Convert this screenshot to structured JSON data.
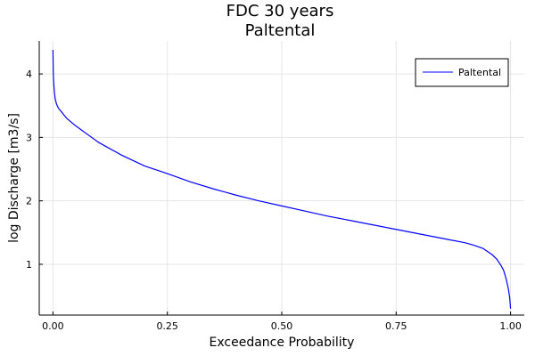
{
  "chart_data": {
    "type": "line",
    "title": "FDC 30 years",
    "subtitle": "Paltental",
    "xlabel": "Exceedance Probability",
    "ylabel": "log Discharge [m3/s]",
    "xlim": [
      -0.03,
      1.03
    ],
    "ylim": [
      0.2,
      4.52
    ],
    "x_ticks": [
      0,
      0.25,
      0.5,
      0.75,
      1
    ],
    "x_tick_labels": [
      "0.00",
      "0.25",
      "0.50",
      "0.75",
      "1.00"
    ],
    "y_ticks": [
      1,
      2,
      3,
      4
    ],
    "y_tick_labels": [
      "1",
      "2",
      "3",
      "4"
    ],
    "grid": true,
    "legend_position": "top-right",
    "series": [
      {
        "name": "Paltental",
        "color": "#0000ff",
        "x": [
          0,
          0.0005,
          0.001,
          0.002,
          0.003,
          0.005,
          0.008,
          0.012,
          0.02,
          0.03,
          0.05,
          0.075,
          0.1,
          0.15,
          0.2,
          0.25,
          0.3,
          0.35,
          0.4,
          0.45,
          0.5,
          0.55,
          0.6,
          0.65,
          0.7,
          0.75,
          0.8,
          0.85,
          0.9,
          0.92,
          0.94,
          0.95,
          0.96,
          0.97,
          0.98,
          0.985,
          0.99,
          0.995,
          0.998,
          1.0
        ],
        "values": [
          4.38,
          4.1,
          3.95,
          3.82,
          3.72,
          3.6,
          3.52,
          3.46,
          3.39,
          3.3,
          3.18,
          3.05,
          2.92,
          2.72,
          2.55,
          2.43,
          2.3,
          2.19,
          2.09,
          2.0,
          1.92,
          1.84,
          1.76,
          1.69,
          1.62,
          1.55,
          1.48,
          1.41,
          1.34,
          1.3,
          1.25,
          1.2,
          1.15,
          1.08,
          0.97,
          0.9,
          0.78,
          0.62,
          0.48,
          0.3
        ]
      }
    ]
  }
}
